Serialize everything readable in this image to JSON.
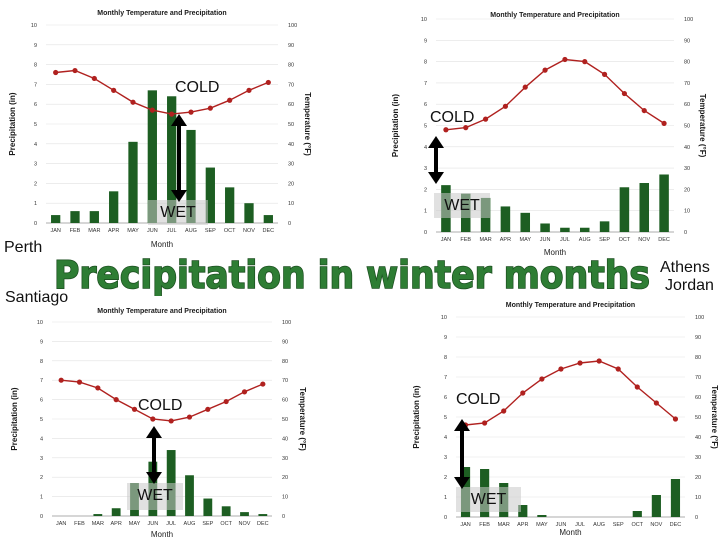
{
  "headline": "Precipitation in winter months",
  "labels": {
    "perth": "Perth",
    "santiago": "Santiago",
    "athens": "Athens",
    "jordan": "Jordan"
  },
  "colors": {
    "bar": "#1d5e22",
    "line": "#b0211f",
    "headline_fill": "#2e7d34",
    "headline_stroke": "#1c4f20"
  },
  "chart_data": [
    {
      "type": "bar",
      "panel": "Perth",
      "title": "Monthly Temperature and Precipitation",
      "xlabel": "Month",
      "ylabel": "Precipitation (in)",
      "y2label": "Temperature (°F)",
      "categories": [
        "JAN",
        "FEB",
        "MAR",
        "APR",
        "MAY",
        "JUN",
        "JUL",
        "AUG",
        "SEP",
        "OCT",
        "NOV",
        "DEC"
      ],
      "ylim": [
        0,
        10
      ],
      "y2lim": [
        0,
        100
      ],
      "yticks": [
        "0",
        "1",
        "2",
        "3",
        "4",
        "5",
        "6",
        "7",
        "8",
        "9",
        "10"
      ],
      "y2ticks": [
        "0",
        "10",
        "20",
        "30",
        "40",
        "50",
        "60",
        "70",
        "80",
        "90",
        "100"
      ],
      "series": [
        {
          "name": "Precipitation",
          "kind": "bar",
          "axis": "left",
          "values": [
            0.4,
            0.6,
            0.6,
            1.6,
            4.1,
            6.7,
            6.4,
            4.7,
            2.8,
            1.8,
            1.0,
            0.4
          ]
        },
        {
          "name": "Temperature",
          "kind": "line",
          "axis": "right",
          "values": [
            76,
            77,
            73,
            67,
            61,
            57,
            55,
            56,
            58,
            62,
            67,
            71
          ]
        }
      ],
      "annotations": {
        "top": "COLD",
        "bottom": "WET"
      }
    },
    {
      "type": "bar",
      "panel": "Athens / Jordan",
      "title": "Monthly Temperature and Precipitation",
      "xlabel": "Month",
      "ylabel": "Precipitation (in)",
      "y2label": "Temperature (°F)",
      "categories": [
        "JAN",
        "FEB",
        "MAR",
        "APR",
        "MAY",
        "JUN",
        "JUL",
        "AUG",
        "SEP",
        "OCT",
        "NOV",
        "DEC"
      ],
      "ylim": [
        0,
        10
      ],
      "y2lim": [
        0,
        100
      ],
      "yticks": [
        "0",
        "1",
        "2",
        "3",
        "4",
        "5",
        "6",
        "7",
        "8",
        "9",
        "10"
      ],
      "y2ticks": [
        "0",
        "10",
        "20",
        "30",
        "40",
        "50",
        "60",
        "70",
        "80",
        "90",
        "100"
      ],
      "series": [
        {
          "name": "Precipitation",
          "kind": "bar",
          "axis": "left",
          "values": [
            2.2,
            1.8,
            1.6,
            1.2,
            0.9,
            0.4,
            0.2,
            0.2,
            0.5,
            2.1,
            2.3,
            2.7
          ]
        },
        {
          "name": "Temperature",
          "kind": "line",
          "axis": "right",
          "values": [
            48,
            49,
            53,
            59,
            68,
            76,
            81,
            80,
            74,
            65,
            57,
            51
          ]
        }
      ],
      "annotations": {
        "top": "COLD",
        "bottom": "WET"
      }
    },
    {
      "type": "bar",
      "panel": "Santiago",
      "title": "Monthly Temperature and Precipitation",
      "xlabel": "Month",
      "ylabel": "Precipitation (in)",
      "y2label": "Temperature (°F)",
      "categories": [
        "JAN",
        "FEB",
        "MAR",
        "APR",
        "MAY",
        "JUN",
        "JUL",
        "AUG",
        "SEP",
        "OCT",
        "NOV",
        "DEC"
      ],
      "ylim": [
        0,
        10
      ],
      "y2lim": [
        0,
        100
      ],
      "yticks": [
        "0",
        "1",
        "2",
        "3",
        "4",
        "5",
        "6",
        "7",
        "8",
        "9",
        "10"
      ],
      "y2ticks": [
        "0",
        "10",
        "20",
        "30",
        "40",
        "50",
        "60",
        "70",
        "80",
        "90",
        "100"
      ],
      "series": [
        {
          "name": "Precipitation",
          "kind": "bar",
          "axis": "left",
          "values": [
            0,
            0,
            0.1,
            0.4,
            1.7,
            2.8,
            3.4,
            2.1,
            0.9,
            0.5,
            0.2,
            0.1
          ]
        },
        {
          "name": "Temperature",
          "kind": "line",
          "axis": "right",
          "values": [
            70,
            69,
            66,
            60,
            55,
            50,
            49,
            51,
            55,
            59,
            64,
            68
          ]
        }
      ],
      "annotations": {
        "top": "COLD",
        "bottom": "WET"
      }
    },
    {
      "type": "bar",
      "panel": "Bottom right",
      "title": "Monthly Temperature and Precipitation",
      "xlabel": "Month",
      "ylabel": "Precipitation (in)",
      "y2label": "Temperature (°F)",
      "categories": [
        "JAN",
        "FEB",
        "MAR",
        "APR",
        "MAY",
        "JUN",
        "JUL",
        "AUG",
        "SEP",
        "OCT",
        "NOV",
        "DEC"
      ],
      "ylim": [
        0,
        10
      ],
      "y2lim": [
        0,
        100
      ],
      "yticks": [
        "0",
        "1",
        "2",
        "3",
        "4",
        "5",
        "6",
        "7",
        "8",
        "9",
        "10"
      ],
      "y2ticks": [
        "0",
        "10",
        "20",
        "30",
        "40",
        "50",
        "60",
        "70",
        "80",
        "90",
        "100"
      ],
      "series": [
        {
          "name": "Precipitation",
          "kind": "bar",
          "axis": "left",
          "values": [
            2.5,
            2.4,
            1.7,
            0.6,
            0.1,
            0,
            0,
            0,
            0,
            0.3,
            1.1,
            1.9
          ]
        },
        {
          "name": "Temperature",
          "kind": "line",
          "axis": "right",
          "values": [
            46,
            47,
            53,
            62,
            69,
            74,
            77,
            78,
            74,
            65,
            57,
            49
          ]
        }
      ],
      "annotations": {
        "top": "COLD",
        "bottom": "WET"
      }
    }
  ]
}
